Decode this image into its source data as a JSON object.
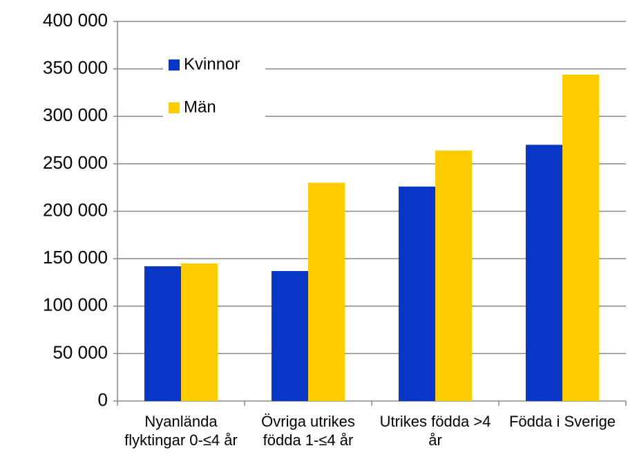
{
  "chart_data": {
    "type": "bar",
    "categories": [
      "Nyanlända flyktingar 0-≤4 år",
      "Övriga utrikes födda 1-≤4 år",
      "Utrikes födda >4 år",
      "Födda i Sverige"
    ],
    "series": [
      {
        "name": "Kvinnor",
        "color": "#0a36c8",
        "values": [
          142000,
          137000,
          226000,
          270000
        ]
      },
      {
        "name": "Män",
        "color": "#ffcc00",
        "values": [
          145000,
          230000,
          264000,
          344000
        ]
      }
    ],
    "ylim": [
      0,
      400000
    ],
    "yticks": [
      {
        "value": 0,
        "label": "0"
      },
      {
        "value": 50000,
        "label": "50 000"
      },
      {
        "value": 100000,
        "label": "100 000"
      },
      {
        "value": 150000,
        "label": "150 000"
      },
      {
        "value": 200000,
        "label": "200 000"
      },
      {
        "value": 250000,
        "label": "250 000"
      },
      {
        "value": 300000,
        "label": "300 000"
      },
      {
        "value": 350000,
        "label": "350 000"
      },
      {
        "value": 400000,
        "label": "400 000"
      }
    ],
    "grid": true,
    "legend": "upper left"
  }
}
